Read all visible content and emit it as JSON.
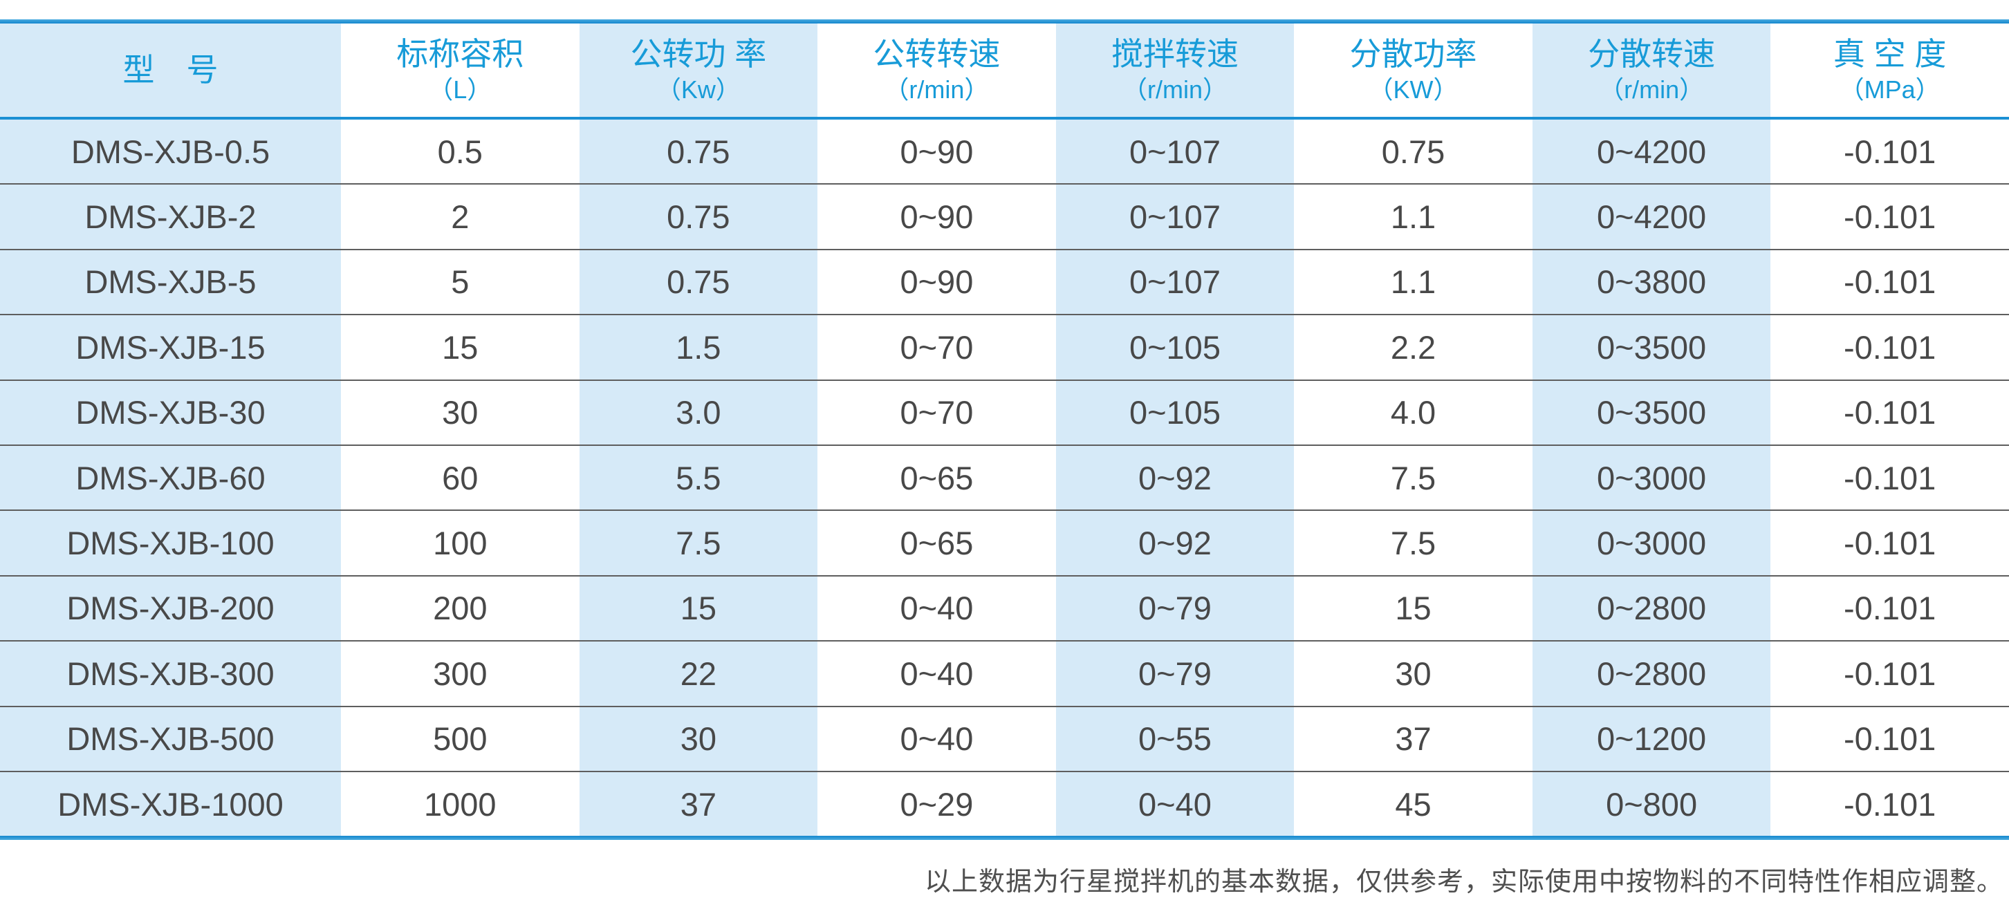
{
  "table": {
    "columns": [
      {
        "label": "型　号",
        "unit": ""
      },
      {
        "label": "标称容积",
        "unit": "（L）"
      },
      {
        "label": "公转功 率",
        "unit": "（Kw）"
      },
      {
        "label": "公转转速",
        "unit": "（r/min）"
      },
      {
        "label": "搅拌转速",
        "unit": "（r/min）"
      },
      {
        "label": "分散功率",
        "unit": "（KW）"
      },
      {
        "label": "分散转速",
        "unit": "（r/min）"
      },
      {
        "label": "真 空 度",
        "unit": "（MPa）"
      }
    ],
    "rows": [
      [
        "DMS-XJB-0.5",
        "0.5",
        "0.75",
        "0~90",
        "0~107",
        "0.75",
        "0~4200",
        "-0.101"
      ],
      [
        "DMS-XJB-2",
        "2",
        "0.75",
        "0~90",
        "0~107",
        "1.1",
        "0~4200",
        "-0.101"
      ],
      [
        "DMS-XJB-5",
        "5",
        "0.75",
        "0~90",
        "0~107",
        "1.1",
        "0~3800",
        "-0.101"
      ],
      [
        "DMS-XJB-15",
        "15",
        "1.5",
        "0~70",
        "0~105",
        "2.2",
        "0~3500",
        "-0.101"
      ],
      [
        "DMS-XJB-30",
        "30",
        "3.0",
        "0~70",
        "0~105",
        "4.0",
        "0~3500",
        "-0.101"
      ],
      [
        "DMS-XJB-60",
        "60",
        "5.5",
        "0~65",
        "0~92",
        "7.5",
        "0~3000",
        "-0.101"
      ],
      [
        "DMS-XJB-100",
        "100",
        "7.5",
        "0~65",
        "0~92",
        "7.5",
        "0~3000",
        "-0.101"
      ],
      [
        "DMS-XJB-200",
        "200",
        "15",
        "0~40",
        "0~79",
        "15",
        "0~2800",
        "-0.101"
      ],
      [
        "DMS-XJB-300",
        "300",
        "22",
        "0~40",
        "0~79",
        "30",
        "0~2800",
        "-0.101"
      ],
      [
        "DMS-XJB-500",
        "500",
        "30",
        "0~40",
        "0~55",
        "37",
        "0~1200",
        "-0.101"
      ],
      [
        "DMS-XJB-1000",
        "1000",
        "37",
        "0~29",
        "0~40",
        "45",
        "0~800",
        "-0.101"
      ]
    ]
  },
  "footnote": "以上数据为行星搅拌机的基本数据，仅供参考，实际使用中按物料的不同特性作相应调整。",
  "colors": {
    "accent_blue": "#1587ce",
    "header_text_blue": "#179bd8",
    "stripe_light_blue": "#d6eaf8",
    "body_text_gray": "#484848",
    "row_line_gray": "#5e5e5e"
  }
}
